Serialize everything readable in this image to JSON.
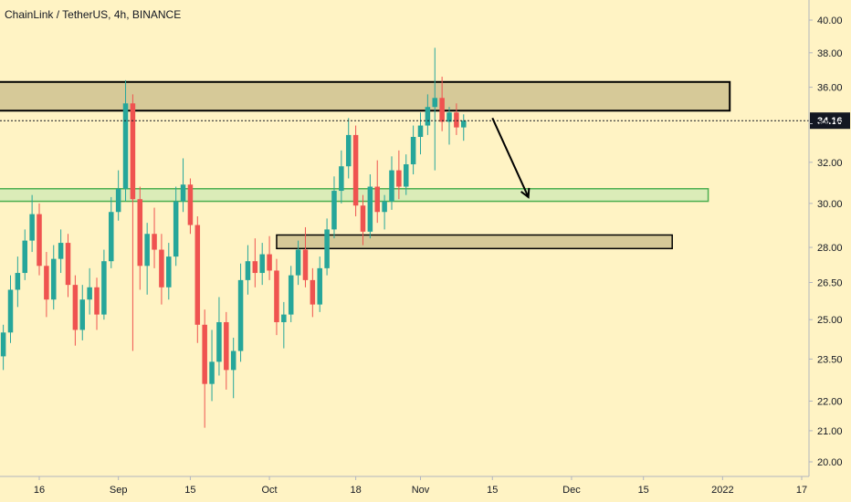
{
  "header": {
    "title": "ChainLink / TetherUS, 4h, BINANCE"
  },
  "colors": {
    "background": "#fff3c4",
    "candle_up": "#26a69a",
    "candle_down": "#ef5350",
    "resistance_zone_fill": "#d6c998",
    "support_zone_fill": "#cfe9b4",
    "support_zone_border": "#4caf50",
    "price_label_bg": "#131722",
    "price_label_text": "#ffffff"
  },
  "chart_data": {
    "type": "candlestick",
    "symbol": "ChainLink / TetherUS",
    "interval": "4h",
    "exchange": "BINANCE",
    "last_price": "34.16",
    "y_scale": "log",
    "ylim": [
      19.5,
      42.5
    ],
    "y_ticks": [
      "40.00",
      "38.00",
      "36.00",
      "34.00",
      "32.00",
      "30.00",
      "28.00",
      "26.50",
      "25.00",
      "23.50",
      "22.00",
      "21.00",
      "20.00"
    ],
    "x_ticks": [
      {
        "label": "16",
        "bar": 5
      },
      {
        "label": "Sep",
        "bar": 16
      },
      {
        "label": "15",
        "bar": 26
      },
      {
        "label": "Oct",
        "bar": 37
      },
      {
        "label": "18",
        "bar": 49
      },
      {
        "label": "Nov",
        "bar": 58
      },
      {
        "label": "15",
        "bar": 68
      },
      {
        "label": "Dec",
        "bar": 79
      },
      {
        "label": "15",
        "bar": 89
      },
      {
        "label": "2022",
        "bar": 100
      },
      {
        "label": "17",
        "bar": 111
      }
    ],
    "x_bar_count": 115,
    "candles": [
      [
        23.0,
        24.2,
        22.1,
        23.6
      ],
      [
        23.6,
        24.8,
        23.1,
        24.5
      ],
      [
        24.5,
        26.8,
        24.1,
        26.2
      ],
      [
        26.2,
        27.6,
        25.5,
        26.9
      ],
      [
        26.9,
        28.8,
        26.6,
        28.3
      ],
      [
        28.3,
        30.4,
        27.8,
        29.5
      ],
      [
        29.5,
        30.0,
        26.8,
        27.2
      ],
      [
        27.2,
        27.8,
        25.1,
        25.8
      ],
      [
        25.8,
        28.1,
        25.4,
        27.5
      ],
      [
        27.5,
        28.8,
        26.9,
        28.2
      ],
      [
        28.2,
        28.6,
        25.9,
        26.4
      ],
      [
        26.4,
        26.8,
        24.0,
        24.6
      ],
      [
        24.6,
        26.4,
        24.2,
        25.8
      ],
      [
        25.8,
        27.1,
        25.2,
        26.3
      ],
      [
        26.3,
        26.7,
        24.6,
        25.2
      ],
      [
        25.2,
        27.9,
        25.0,
        27.4
      ],
      [
        27.4,
        30.3,
        27.1,
        29.6
      ],
      [
        29.6,
        31.6,
        29.2,
        30.7
      ],
      [
        30.7,
        36.4,
        30.1,
        35.1
      ],
      [
        35.1,
        35.6,
        23.8,
        30.2
      ],
      [
        30.2,
        30.8,
        26.2,
        27.2
      ],
      [
        27.2,
        29.1,
        26.0,
        28.6
      ],
      [
        28.6,
        29.8,
        27.1,
        27.9
      ],
      [
        27.9,
        28.6,
        25.6,
        26.3
      ],
      [
        26.3,
        28.2,
        25.8,
        27.6
      ],
      [
        27.6,
        30.8,
        27.2,
        30.1
      ],
      [
        30.1,
        32.2,
        29.6,
        30.9
      ],
      [
        30.9,
        31.2,
        28.6,
        29.0
      ],
      [
        29.0,
        29.4,
        24.1,
        24.8
      ],
      [
        24.8,
        25.4,
        21.1,
        22.6
      ],
      [
        22.6,
        24.6,
        22.0,
        23.4
      ],
      [
        23.4,
        25.9,
        22.9,
        24.9
      ],
      [
        24.9,
        25.3,
        22.4,
        23.1
      ],
      [
        23.1,
        24.3,
        22.1,
        23.8
      ],
      [
        23.8,
        27.3,
        23.4,
        26.6
      ],
      [
        26.6,
        28.1,
        26.0,
        27.4
      ],
      [
        27.4,
        28.4,
        26.3,
        26.9
      ],
      [
        26.9,
        28.2,
        26.4,
        27.7
      ],
      [
        27.7,
        28.5,
        26.6,
        27.0
      ],
      [
        27.0,
        27.5,
        24.4,
        24.9
      ],
      [
        24.9,
        25.7,
        23.9,
        25.2
      ],
      [
        25.2,
        27.2,
        24.9,
        26.8
      ],
      [
        26.8,
        28.3,
        26.4,
        27.9
      ],
      [
        27.9,
        28.9,
        26.3,
        26.6
      ],
      [
        26.6,
        27.1,
        25.1,
        25.6
      ],
      [
        25.6,
        27.6,
        25.3,
        27.1
      ],
      [
        27.1,
        29.3,
        26.8,
        28.8
      ],
      [
        28.8,
        31.3,
        28.4,
        30.6
      ],
      [
        30.6,
        32.6,
        30.0,
        31.8
      ],
      [
        31.8,
        34.3,
        31.2,
        33.4
      ],
      [
        33.4,
        33.9,
        29.4,
        29.9
      ],
      [
        29.9,
        30.4,
        28.1,
        28.7
      ],
      [
        28.7,
        31.4,
        28.4,
        30.8
      ],
      [
        30.8,
        32.1,
        29.1,
        29.6
      ],
      [
        29.6,
        30.4,
        28.8,
        30.1
      ],
      [
        30.1,
        32.3,
        29.7,
        31.6
      ],
      [
        31.6,
        32.6,
        30.2,
        30.8
      ],
      [
        30.8,
        32.4,
        30.4,
        31.9
      ],
      [
        31.9,
        33.9,
        31.4,
        33.3
      ],
      [
        33.3,
        34.6,
        32.4,
        33.9
      ],
      [
        33.9,
        35.6,
        33.4,
        34.9
      ],
      [
        34.9,
        38.3,
        31.6,
        35.4
      ],
      [
        35.4,
        36.6,
        33.6,
        34.1
      ],
      [
        34.1,
        34.9,
        32.9,
        34.6
      ],
      [
        34.6,
        35.1,
        33.4,
        33.8
      ],
      [
        33.8,
        34.5,
        33.1,
        34.16
      ]
    ]
  },
  "drawings": {
    "resistance_zone": [
      34.7,
      36.3
    ],
    "support_zone": [
      30.1,
      30.7
    ],
    "mid_zone": [
      27.95,
      28.55
    ],
    "resistance_zone_end_bar": 101,
    "support_zone_start_bar": -3,
    "support_zone_end_bar": 98,
    "mid_zone_start_bar": 38,
    "mid_zone_end_bar": 93,
    "arrow": {
      "from_bar": 68,
      "from_price": 34.3,
      "to_bar": 73,
      "to_price": 30.3
    }
  }
}
